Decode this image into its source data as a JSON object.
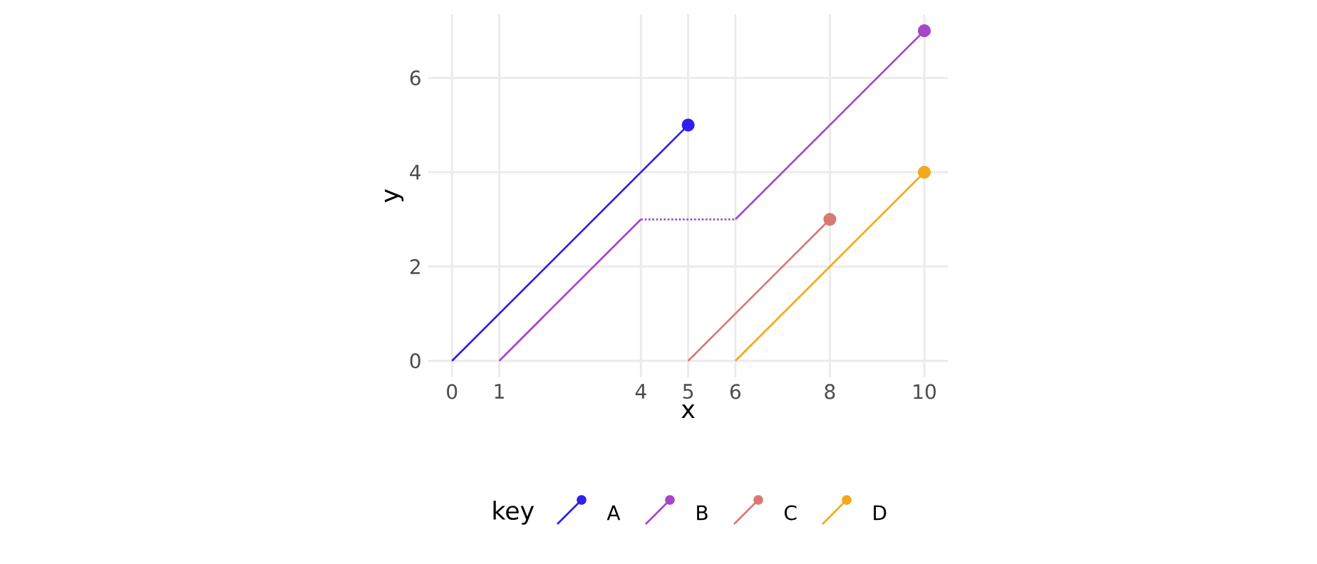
{
  "chart_data": {
    "type": "line",
    "xlabel": "x",
    "ylabel": "y",
    "legend_title": "key",
    "legend": "bottom",
    "grid": true,
    "xlim": [
      -0.5,
      10.5
    ],
    "ylim": [
      -0.35,
      7.35
    ],
    "xticks": [
      0,
      1,
      4,
      5,
      6,
      8,
      10
    ],
    "yticks": [
      0,
      2,
      4,
      6
    ],
    "series": [
      {
        "name": "A",
        "color": "#2e1ef0",
        "x": [
          0,
          5
        ],
        "values": [
          0,
          5
        ]
      },
      {
        "name": "B",
        "color": "#a846c8",
        "x": [
          1,
          4
        ],
        "values": [
          0,
          3
        ]
      },
      {
        "color": "#a846c8",
        "x": [
          4,
          6
        ],
        "values": [
          3,
          3
        ],
        "line_style": "dotted"
      },
      {
        "color": "#a846c8",
        "x": [
          6,
          10
        ],
        "values": [
          3,
          7
        ]
      },
      {
        "name": "C",
        "color": "#d97a72",
        "x": [
          5,
          8
        ],
        "values": [
          0,
          3
        ]
      },
      {
        "name": "D",
        "color": "#f5a81c",
        "x": [
          6,
          10
        ],
        "values": [
          0,
          4
        ]
      },
      {
        "type": "scatter",
        "marker": "circle",
        "color": "#2e1ef0",
        "x": [
          5
        ],
        "values": [
          5
        ]
      },
      {
        "type": "scatter",
        "marker": "circle",
        "color": "#a846c8",
        "x": [
          10
        ],
        "values": [
          7
        ]
      },
      {
        "type": "scatter",
        "marker": "circle",
        "color": "#d97a72",
        "x": [
          8
        ],
        "values": [
          3
        ]
      },
      {
        "type": "scatter",
        "marker": "circle",
        "color": "#f5a81c",
        "x": [
          10
        ],
        "values": [
          4
        ]
      }
    ]
  }
}
